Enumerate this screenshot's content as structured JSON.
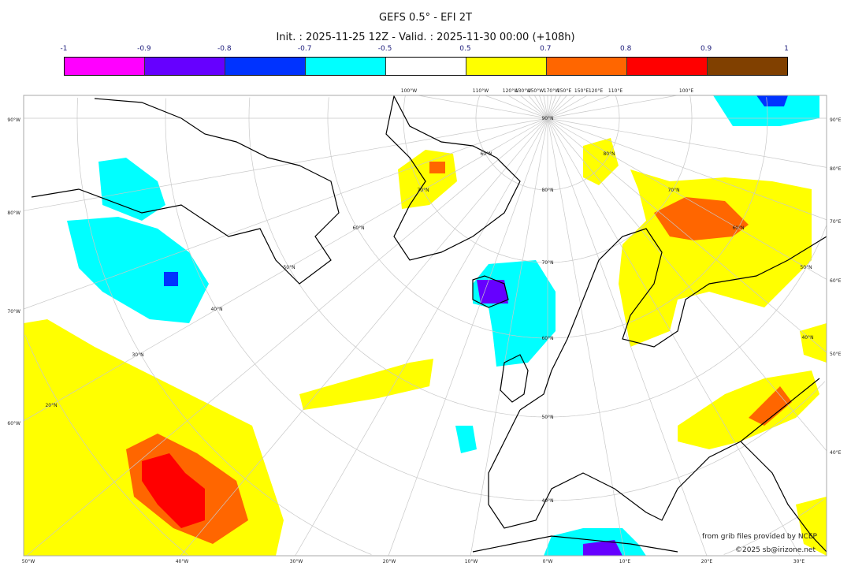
{
  "title": "GEFS 0.5° - EFI 2T",
  "subtitle": "Init. : 2025-11-25 12Z - Valid. : 2025-11-30 00:00 (+108h)",
  "colorbar": {
    "ticks": [
      "-1",
      "-0.9",
      "-0.8",
      "-0.7",
      "-0.5",
      "0.5",
      "0.7",
      "0.8",
      "0.9",
      "1"
    ],
    "colors": [
      "#ff00ff",
      "#6600ff",
      "#0033ff",
      "#00ffff",
      "#ffffff",
      "#ffff00",
      "#ff6600",
      "#ff0000",
      "#804000"
    ]
  },
  "axes": {
    "left": [
      "90°W",
      "80°W",
      "70°W",
      "60°W"
    ],
    "right": [
      "90°E",
      "80°E",
      "70°E",
      "60°E",
      "50°E",
      "40°E"
    ],
    "bottom": [
      "50°W",
      "40°W",
      "30°W",
      "20°W",
      "10°W",
      "0°W",
      "10°E",
      "20°E",
      "30°E"
    ],
    "top": [
      "100°W",
      "110°W",
      "120°W",
      "130°W",
      "150°W",
      "170°W",
      "150°E",
      "150°E",
      "120°E",
      "110°E",
      "100°E"
    ],
    "lat_labels": [
      "90°N",
      "80°N",
      "70°N",
      "60°N",
      "50°N",
      "40°N",
      "60°N",
      "70°N",
      "60°N",
      "50°N",
      "40°N",
      "30°N",
      "20°N",
      "80°N",
      "70°N",
      "60°N",
      "50°N",
      "40°N"
    ]
  },
  "credits": {
    "source": "from grib files provided by NCEP",
    "copyright": "©2025 sb@irizone.net"
  }
}
